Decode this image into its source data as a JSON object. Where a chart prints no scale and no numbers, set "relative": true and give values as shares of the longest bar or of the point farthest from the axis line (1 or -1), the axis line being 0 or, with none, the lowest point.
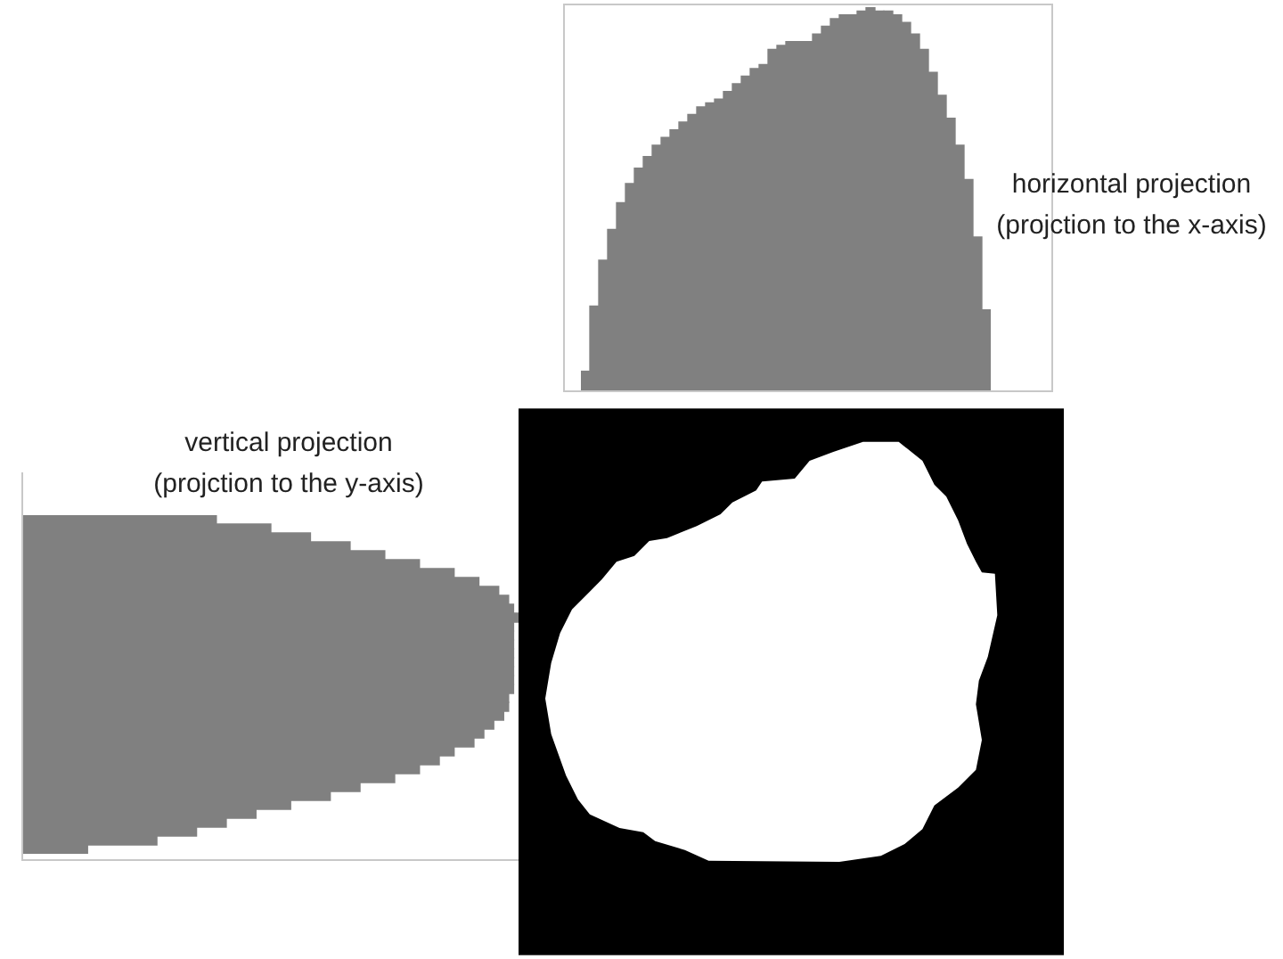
{
  "chart_data": [
    {
      "type": "bar",
      "annotations": [
        "horizontal projection",
        "(projction to the x-axis)"
      ],
      "relative": true,
      "color": "#808080",
      "categories": [
        null,
        null,
        null,
        null,
        null,
        null,
        null,
        null,
        null,
        null,
        null,
        null,
        null,
        null,
        null,
        null,
        null,
        null,
        null,
        null,
        null,
        null,
        null,
        null,
        null,
        null,
        null,
        null,
        null,
        null,
        null,
        null,
        null,
        null,
        null,
        null,
        null,
        null,
        null,
        null,
        null,
        null,
        null,
        null,
        null,
        null
      ],
      "values": [
        0.05,
        0.22,
        0.34,
        0.42,
        0.49,
        0.54,
        0.58,
        0.61,
        0.64,
        0.66,
        0.68,
        0.7,
        0.72,
        0.74,
        0.75,
        0.76,
        0.78,
        0.8,
        0.82,
        0.84,
        0.85,
        0.89,
        0.9,
        0.91,
        0.91,
        0.91,
        0.93,
        0.95,
        0.97,
        0.98,
        0.98,
        0.99,
        1,
        0.99,
        0.99,
        0.98,
        0.96,
        0.93,
        0.89,
        0.83,
        0.77,
        0.71,
        0.64,
        0.55,
        0.4,
        0.21
      ]
    },
    {
      "type": "bar",
      "orientation": "horizontal",
      "title": "vertical projection",
      "subtitle": "(projction to the y-axis)",
      "relative": true,
      "color": "#808080",
      "categories": [
        null,
        null,
        null,
        null,
        null,
        null,
        null,
        null,
        null,
        null,
        null,
        null,
        null,
        null,
        null,
        null,
        null,
        null,
        null,
        null,
        null,
        null,
        null,
        null,
        null,
        null,
        null,
        null,
        null,
        null,
        null,
        null,
        null,
        null,
        null,
        null,
        null,
        null
      ],
      "values": [
        0.39,
        0.5,
        0.58,
        0.66,
        0.73,
        0.8,
        0.87,
        0.92,
        0.96,
        0.98,
        0.99,
        1,
        0.99,
        0.99,
        0.99,
        0.99,
        0.99,
        0.99,
        0.99,
        0.99,
        0.98,
        0.98,
        0.97,
        0.95,
        0.93,
        0.91,
        0.87,
        0.84,
        0.8,
        0.75,
        0.68,
        0.62,
        0.54,
        0.47,
        0.41,
        0.35,
        0.27,
        0.13
      ]
    }
  ]
}
